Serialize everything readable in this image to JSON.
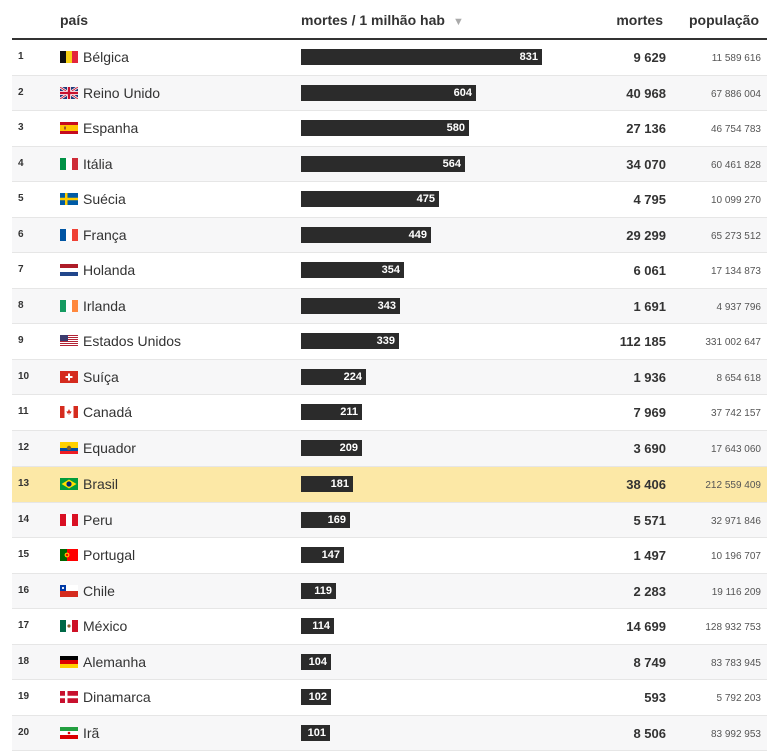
{
  "header": {
    "country": "país",
    "rate": "mortes / 1 milhão hab",
    "sort_icon": "▼",
    "deaths": "mortes",
    "population": "população"
  },
  "colors": {
    "bar": "#2b2b2b",
    "highlight": "#fce8a6",
    "alt_row": "#f7f7f8"
  },
  "chart_data": {
    "type": "table",
    "columns": [
      "país",
      "mortes / 1 milhão hab",
      "mortes",
      "população"
    ],
    "highlight_rank": 13,
    "rows": [
      {
        "rank": "1",
        "flag": "belgium-flag-icon",
        "country": "Bélgica",
        "rate": 831,
        "deaths": "9 629",
        "population": "11 589 616"
      },
      {
        "rank": "2",
        "flag": "uk-flag-icon",
        "country": "Reino Unido",
        "rate": 604,
        "deaths": "40 968",
        "population": "67 886 004"
      },
      {
        "rank": "3",
        "flag": "spain-flag-icon",
        "country": "Espanha",
        "rate": 580,
        "deaths": "27 136",
        "population": "46 754 783"
      },
      {
        "rank": "4",
        "flag": "italy-flag-icon",
        "country": "Itália",
        "rate": 564,
        "deaths": "34 070",
        "population": "60 461 828"
      },
      {
        "rank": "5",
        "flag": "sweden-flag-icon",
        "country": "Suécia",
        "rate": 475,
        "deaths": "4 795",
        "population": "10 099 270"
      },
      {
        "rank": "6",
        "flag": "france-flag-icon",
        "country": "França",
        "rate": 449,
        "deaths": "29 299",
        "population": "65 273 512"
      },
      {
        "rank": "7",
        "flag": "netherlands-flag-icon",
        "country": "Holanda",
        "rate": 354,
        "deaths": "6 061",
        "population": "17 134 873"
      },
      {
        "rank": "8",
        "flag": "ireland-flag-icon",
        "country": "Irlanda",
        "rate": 343,
        "deaths": "1 691",
        "population": "4 937 796"
      },
      {
        "rank": "9",
        "flag": "usa-flag-icon",
        "country": "Estados Unidos",
        "rate": 339,
        "deaths": "112 185",
        "population": "331 002 647"
      },
      {
        "rank": "10",
        "flag": "switzerland-flag-icon",
        "country": "Suíça",
        "rate": 224,
        "deaths": "1 936",
        "population": "8 654 618"
      },
      {
        "rank": "11",
        "flag": "canada-flag-icon",
        "country": "Canadá",
        "rate": 211,
        "deaths": "7 969",
        "population": "37 742 157"
      },
      {
        "rank": "12",
        "flag": "ecuador-flag-icon",
        "country": "Equador",
        "rate": 209,
        "deaths": "3 690",
        "population": "17 643 060"
      },
      {
        "rank": "13",
        "flag": "brazil-flag-icon",
        "country": "Brasil",
        "rate": 181,
        "deaths": "38 406",
        "population": "212 559 409"
      },
      {
        "rank": "14",
        "flag": "peru-flag-icon",
        "country": "Peru",
        "rate": 169,
        "deaths": "5 571",
        "population": "32 971 846"
      },
      {
        "rank": "15",
        "flag": "portugal-flag-icon",
        "country": "Portugal",
        "rate": 147,
        "deaths": "1 497",
        "population": "10 196 707"
      },
      {
        "rank": "16",
        "flag": "chile-flag-icon",
        "country": "Chile",
        "rate": 119,
        "deaths": "2 283",
        "population": "19 116 209"
      },
      {
        "rank": "17",
        "flag": "mexico-flag-icon",
        "country": "México",
        "rate": 114,
        "deaths": "14 699",
        "population": "128 932 753"
      },
      {
        "rank": "18",
        "flag": "germany-flag-icon",
        "country": "Alemanha",
        "rate": 104,
        "deaths": "8 749",
        "population": "83 783 945"
      },
      {
        "rank": "19",
        "flag": "denmark-flag-icon",
        "country": "Dinamarca",
        "rate": 102,
        "deaths": "593",
        "population": "5 792 203"
      },
      {
        "rank": "20",
        "flag": "iran-flag-icon",
        "country": "Irã",
        "rate": 101,
        "deaths": "8 506",
        "population": "83 992 953"
      }
    ]
  }
}
